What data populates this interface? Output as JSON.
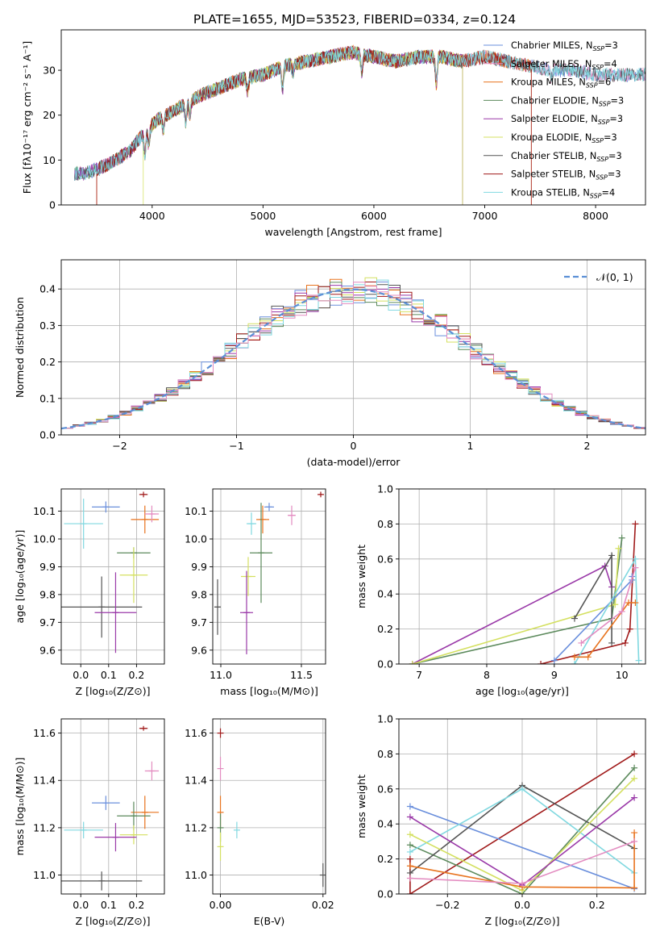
{
  "title": "PLATE=1655, MJD=53523, FIBERID=0334, z=0.124",
  "colors": [
    "#6a8fdc",
    "#e8731e",
    "#c2893b",
    "#5c8a5c",
    "#9a39a8",
    "#d4e060",
    "#555555",
    "#a01a1a",
    "#80d8e0",
    "#e38bc0",
    "#909090"
  ],
  "chart_data": [
    {
      "id": "spectrum",
      "type": "line",
      "xlabel": "wavelength [Angstrom, rest frame]",
      "ylabel": "Flux [fλ10⁻¹⁷ erg cm⁻² s⁻¹ A⁻¹]",
      "xlim": [
        3180,
        8450
      ],
      "ylim": [
        0,
        39
      ],
      "xticks": [
        4000,
        5000,
        6000,
        7000,
        8000
      ],
      "yticks": [
        0,
        10,
        20,
        30
      ],
      "grid": false,
      "legend_position": "right",
      "continuum_knots": [
        [
          3400,
          7
        ],
        [
          3600,
          9
        ],
        [
          3800,
          12
        ],
        [
          3920,
          16
        ],
        [
          4050,
          19
        ],
        [
          4200,
          21
        ],
        [
          4400,
          24
        ],
        [
          4600,
          26
        ],
        [
          4800,
          28
        ],
        [
          5000,
          29
        ],
        [
          5200,
          31
        ],
        [
          5400,
          32
        ],
        [
          5600,
          33
        ],
        [
          5800,
          34
        ],
        [
          6000,
          33
        ],
        [
          6200,
          32
        ],
        [
          6400,
          33
        ],
        [
          6600,
          33
        ],
        [
          6800,
          32
        ],
        [
          7000,
          33
        ],
        [
          7200,
          32
        ],
        [
          7400,
          31
        ],
        [
          7600,
          30
        ],
        [
          7800,
          30
        ],
        [
          8000,
          29
        ],
        [
          8200,
          29
        ]
      ],
      "absorption_features": [
        [
          3934,
          5
        ],
        [
          3969,
          4
        ],
        [
          4101,
          3
        ],
        [
          4304,
          4
        ],
        [
          4341,
          3
        ],
        [
          4861,
          3
        ],
        [
          5175,
          5
        ],
        [
          5270,
          2
        ],
        [
          5890,
          4
        ],
        [
          6563,
          6
        ],
        [
          7600,
          2
        ]
      ],
      "series": [
        {
          "name": "Chabrier MILES, N",
          "sub": "SSP",
          "suffix": "=3",
          "color": "#6a8fdc",
          "xrange": [
            3300,
            8450
          ]
        },
        {
          "name": "Salpeter MILES, N",
          "sub": "SSP",
          "suffix": "=4",
          "color": "#e38bc0",
          "xrange": [
            3300,
            8450
          ]
        },
        {
          "name": "Kroupa MILES, N",
          "sub": "SSP",
          "suffix": "=6",
          "color": "#e8731e",
          "xrange": [
            3500,
            7420
          ]
        },
        {
          "name": "Chabrier ELODIE, N",
          "sub": "SSP",
          "suffix": "=3",
          "color": "#5c8a5c",
          "xrange": [
            3300,
            6800
          ]
        },
        {
          "name": "Salpeter ELODIE, N",
          "sub": "SSP",
          "suffix": "=3",
          "color": "#9a39a8",
          "xrange": [
            3300,
            6800
          ]
        },
        {
          "name": "Kroupa ELODIE, N",
          "sub": "SSP",
          "suffix": "=3",
          "color": "#d4e060",
          "xrange": [
            3920,
            6800
          ]
        },
        {
          "name": "Chabrier STELIB, N",
          "sub": "SSP",
          "suffix": "=3",
          "color": "#555555",
          "xrange": [
            3300,
            8450
          ]
        },
        {
          "name": "Salpeter STELIB, N",
          "sub": "SSP",
          "suffix": "=3",
          "color": "#a01a1a",
          "xrange": [
            3500,
            7420
          ]
        },
        {
          "name": "Kroupa STELIB, N",
          "sub": "SSP",
          "suffix": "=4",
          "color": "#80d8e0",
          "xrange": [
            3300,
            8450
          ]
        }
      ]
    },
    {
      "id": "residuals",
      "type": "step",
      "xlabel": "(data-model)/error",
      "ylabel": "Normed distribution",
      "xlim": [
        -2.5,
        2.5
      ],
      "ylim": [
        0,
        0.48
      ],
      "xticks": [
        -2,
        -1,
        0,
        1,
        2
      ],
      "yticks": [
        0.0,
        0.1,
        0.2,
        0.3,
        0.4
      ],
      "xticklabels": [
        "−2",
        "−1",
        "0",
        "1",
        "2"
      ],
      "grid": true,
      "legend": {
        "label": "𝒩(0, 1)",
        "position": "top-right"
      },
      "bin_width": 0.1,
      "series_colors": [
        "#6a8fdc",
        "#e8731e",
        "#5c8a5c",
        "#9a39a8",
        "#d4e060",
        "#555555",
        "#a01a1a",
        "#80d8e0",
        "#e38bc0"
      ]
    },
    {
      "id": "age-vs-Z",
      "type": "errorbar",
      "xlabel": "Z [log₁₀(Z/Z⊙)]",
      "ylabel": "age  [log₁₀(age/yr)]",
      "xlim": [
        -0.07,
        0.3
      ],
      "ylim": [
        9.55,
        10.18
      ],
      "xticks": [
        0.0,
        0.1,
        0.2
      ],
      "yticks": [
        9.6,
        9.7,
        9.8,
        9.9,
        10.0,
        10.1
      ],
      "grid": true,
      "points": [
        {
          "x": 0.09,
          "y": 10.115,
          "xerr": 0.05,
          "yerr": 0.02,
          "color": "#6a8fdc"
        },
        {
          "x": 0.23,
          "y": 10.07,
          "xerr": 0.05,
          "yerr": 0.05,
          "color": "#e8731e"
        },
        {
          "x": 0.255,
          "y": 10.09,
          "xerr": 0.025,
          "yerr": 0.03,
          "color": "#e38bc0"
        },
        {
          "x": 0.225,
          "y": 10.16,
          "xerr": 0.015,
          "yerr": 0.01,
          "color": "#a01a1a"
        },
        {
          "x": 0.01,
          "y": 10.055,
          "xerr": 0.07,
          "yerr": 0.09,
          "color": "#80d8e0"
        },
        {
          "x": 0.19,
          "y": 9.95,
          "xerr": 0.06,
          "yerr": 0.02,
          "color": "#5c8a5c"
        },
        {
          "x": 0.19,
          "y": 9.87,
          "xerr": 0.05,
          "yerr": 0.1,
          "color": "#d4e060"
        },
        {
          "x": 0.075,
          "y": 9.755,
          "xerr": 0.145,
          "yerr": 0.11,
          "color": "#555555"
        },
        {
          "x": 0.125,
          "y": 9.735,
          "xerr": 0.075,
          "yerr": 0.145,
          "color": "#9a39a8"
        }
      ]
    },
    {
      "id": "age-vs-mass",
      "type": "errorbar",
      "xlabel": "mass [log₁₀(M/M⊙)]",
      "ylabel": "",
      "xlim": [
        10.95,
        11.65
      ],
      "ylim": [
        9.55,
        10.18
      ],
      "xticks": [
        11.0,
        11.5
      ],
      "yticks": [
        9.6,
        9.7,
        9.8,
        9.9,
        10.0,
        10.1
      ],
      "grid": true,
      "points": [
        {
          "x": 11.3,
          "y": 10.115,
          "xerr": 0.03,
          "yerr": 0.015,
          "color": "#6a8fdc"
        },
        {
          "x": 11.26,
          "y": 10.07,
          "xerr": 0.04,
          "yerr": 0.05,
          "color": "#e8731e"
        },
        {
          "x": 11.44,
          "y": 10.085,
          "xerr": 0.025,
          "yerr": 0.035,
          "color": "#e38bc0"
        },
        {
          "x": 11.62,
          "y": 10.16,
          "xerr": 0.01,
          "yerr": 0.01,
          "color": "#a01a1a"
        },
        {
          "x": 11.19,
          "y": 10.055,
          "xerr": 0.03,
          "yerr": 0.04,
          "color": "#80d8e0"
        },
        {
          "x": 11.25,
          "y": 9.95,
          "xerr": 0.07,
          "yerr": 0.18,
          "color": "#5c8a5c"
        },
        {
          "x": 11.17,
          "y": 9.865,
          "xerr": 0.045,
          "yerr": 0.07,
          "color": "#d4e060"
        },
        {
          "x": 10.98,
          "y": 9.755,
          "xerr": 0.02,
          "yerr": 0.1,
          "color": "#555555"
        },
        {
          "x": 11.16,
          "y": 9.735,
          "xerr": 0.04,
          "yerr": 0.15,
          "color": "#9a39a8"
        }
      ]
    },
    {
      "id": "weight-vs-age",
      "type": "line",
      "xlabel": "age  [log₁₀(age/yr)]",
      "ylabel": "mass weight",
      "xlim": [
        6.7,
        10.35
      ],
      "ylim": [
        0,
        1.0
      ],
      "xticks": [
        7,
        8,
        9,
        10
      ],
      "yticks": [
        0.0,
        0.2,
        0.4,
        0.6,
        0.8,
        1.0
      ],
      "grid": true,
      "series": [
        {
          "color": "#a01a1a",
          "x": [
            8.8,
            10.05,
            10.12,
            10.2
          ],
          "y": [
            0.0,
            0.12,
            0.2,
            0.8
          ]
        },
        {
          "color": "#5c8a5c",
          "x": [
            6.9,
            9.85,
            10.0
          ],
          "y": [
            0.0,
            0.26,
            0.72
          ]
        },
        {
          "color": "#9a39a8",
          "x": [
            6.9,
            9.75,
            9.85
          ],
          "y": [
            0.0,
            0.56,
            0.44
          ]
        },
        {
          "color": "#d4e060",
          "x": [
            6.9,
            9.9,
            9.95
          ],
          "y": [
            0.0,
            0.34,
            0.66
          ]
        },
        {
          "color": "#555555",
          "x": [
            9.3,
            9.85,
            9.85
          ],
          "y": [
            0.26,
            0.62,
            0.12
          ]
        },
        {
          "color": "#6a8fdc",
          "x": [
            9.0,
            10.15,
            10.15
          ],
          "y": [
            0.02,
            0.48,
            0.5
          ]
        },
        {
          "color": "#80d8e0",
          "x": [
            9.3,
            10.2,
            10.25
          ],
          "y": [
            0.0,
            0.6,
            0.02
          ]
        },
        {
          "color": "#e8731e",
          "x": [
            9.3,
            9.5,
            10.1,
            10.2
          ],
          "y": [
            0.04,
            0.04,
            0.35,
            0.35
          ]
        },
        {
          "color": "#e38bc0",
          "x": [
            9.4,
            10.0,
            10.2
          ],
          "y": [
            0.12,
            0.3,
            0.55
          ]
        }
      ]
    },
    {
      "id": "mass-vs-Z",
      "type": "errorbar",
      "xlabel": "Z [log₁₀(Z/Z⊙)]",
      "ylabel": "mass [log₁₀(M/M⊙)]",
      "xlim": [
        -0.07,
        0.3
      ],
      "ylim": [
        10.92,
        11.66
      ],
      "xticks": [
        0.0,
        0.1,
        0.2
      ],
      "yticks": [
        11.0,
        11.2,
        11.4,
        11.6
      ],
      "grid": true,
      "points": [
        {
          "x": 0.225,
          "y": 11.62,
          "xerr": 0.015,
          "yerr": 0.01,
          "color": "#a01a1a"
        },
        {
          "x": 0.255,
          "y": 11.44,
          "xerr": 0.025,
          "yerr": 0.04,
          "color": "#e38bc0"
        },
        {
          "x": 0.09,
          "y": 11.305,
          "xerr": 0.05,
          "yerr": 0.03,
          "color": "#6a8fdc"
        },
        {
          "x": 0.23,
          "y": 11.265,
          "xerr": 0.05,
          "yerr": 0.07,
          "color": "#e8731e"
        },
        {
          "x": 0.19,
          "y": 11.25,
          "xerr": 0.06,
          "yerr": 0.06,
          "color": "#5c8a5c"
        },
        {
          "x": 0.01,
          "y": 11.19,
          "xerr": 0.07,
          "yerr": 0.035,
          "color": "#80d8e0"
        },
        {
          "x": 0.19,
          "y": 11.17,
          "xerr": 0.05,
          "yerr": 0.04,
          "color": "#d4e060"
        },
        {
          "x": 0.125,
          "y": 11.16,
          "xerr": 0.075,
          "yerr": 0.06,
          "color": "#9a39a8"
        },
        {
          "x": 0.075,
          "y": 10.975,
          "xerr": 0.145,
          "yerr": 0.04,
          "color": "#555555"
        }
      ]
    },
    {
      "id": "mass-vs-EBV",
      "type": "errorbar",
      "xlabel": "E(B-V)",
      "ylabel": "",
      "xlim": [
        -0.0015,
        0.0205
      ],
      "ylim": [
        10.92,
        11.66
      ],
      "xticks": [
        0.0,
        0.02
      ],
      "yticks": [
        11.0,
        11.2,
        11.4,
        11.6
      ],
      "xticklabels": [
        "0.00",
        "0.02"
      ],
      "grid": true,
      "points": [
        {
          "x": 0.0,
          "y": 11.6,
          "xerr": 0.0,
          "yerr": 0.02,
          "color": "#a01a1a"
        },
        {
          "x": 0.0,
          "y": 11.45,
          "xerr": 0.0,
          "yerr": 0.05,
          "color": "#e38bc0"
        },
        {
          "x": 0.0,
          "y": 11.265,
          "xerr": 0.0,
          "yerr": 0.07,
          "color": "#e8731e"
        },
        {
          "x": 0.0,
          "y": 11.2,
          "xerr": 0.0,
          "yerr": 0.06,
          "color": "#5c8a5c"
        },
        {
          "x": 0.0,
          "y": 11.12,
          "xerr": 0.0,
          "yerr": 0.06,
          "color": "#d4e060"
        },
        {
          "x": 0.0032,
          "y": 11.19,
          "xerr": 0.0,
          "yerr": 0.035,
          "color": "#80d8e0"
        },
        {
          "x": 0.02,
          "y": 11.0,
          "xerr": 0.0,
          "yerr": 0.05,
          "color": "#555555"
        }
      ]
    },
    {
      "id": "weight-vs-Z",
      "type": "line",
      "xlabel": "Z [log₁₀(Z/Z⊙)]",
      "ylabel": "mass weight",
      "xlim": [
        -0.33,
        0.33
      ],
      "ylim": [
        0,
        1.0
      ],
      "xticks": [
        -0.2,
        0.0,
        0.2
      ],
      "yticks": [
        0.0,
        0.2,
        0.4,
        0.6,
        0.8,
        1.0
      ],
      "xticklabels": [
        "−0.2",
        "0.0",
        "0.2"
      ],
      "grid": true,
      "series": [
        {
          "color": "#a01a1a",
          "x": [
            -0.3,
            -0.3,
            0.3
          ],
          "y": [
            0.2,
            0.0,
            0.8
          ]
        },
        {
          "color": "#6a8fdc",
          "x": [
            -0.3,
            0.3
          ],
          "y": [
            0.5,
            0.03
          ]
        },
        {
          "color": "#5c8a5c",
          "x": [
            -0.3,
            0.0,
            0.3
          ],
          "y": [
            0.28,
            0.0,
            0.72
          ]
        },
        {
          "color": "#555555",
          "x": [
            -0.3,
            0.0,
            0.3
          ],
          "y": [
            0.12,
            0.62,
            0.26
          ]
        },
        {
          "color": "#80d8e0",
          "x": [
            -0.3,
            0.0,
            0.3
          ],
          "y": [
            0.24,
            0.6,
            0.12
          ]
        },
        {
          "color": "#d4e060",
          "x": [
            -0.3,
            0.0,
            0.3
          ],
          "y": [
            0.34,
            0.02,
            0.66
          ]
        },
        {
          "color": "#9a39a8",
          "x": [
            -0.3,
            0.0,
            0.3
          ],
          "y": [
            0.44,
            0.05,
            0.55
          ]
        },
        {
          "color": "#e8731e",
          "x": [
            -0.3,
            0.0,
            0.3,
            0.3
          ],
          "y": [
            0.16,
            0.04,
            0.035,
            0.35
          ]
        },
        {
          "color": "#e38bc0",
          "x": [
            -0.3,
            0.0,
            0.3
          ],
          "y": [
            0.09,
            0.06,
            0.3
          ]
        }
      ]
    }
  ]
}
